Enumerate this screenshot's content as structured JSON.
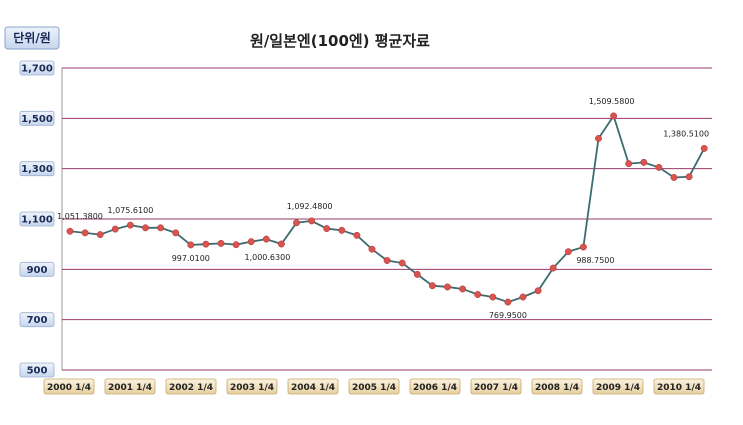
{
  "chart_data": {
    "type": "line",
    "title": "원/일본엔(100엔) 평균자료",
    "unit_label": "단위/원",
    "ylim": [
      500,
      1700
    ],
    "yticks": [
      500,
      700,
      900,
      1100,
      1300,
      1500,
      1700
    ],
    "ytick_labels": [
      "500",
      "700",
      "900",
      "1,100",
      "1,300",
      "1,500",
      "1,700"
    ],
    "x_tick_labels": [
      "2000 1/4",
      "2001 1/4",
      "2002 1/4",
      "2003 1/4",
      "2004 1/4",
      "2005 1/4",
      "2006 1/4",
      "2007 1/4",
      "2008 1/4",
      "2009 1/4",
      "2010 1/4"
    ],
    "grid": true,
    "line_color": "#3d6b70",
    "marker_color": "#d9534f",
    "grid_color": "#9a3a6a",
    "series": [
      {
        "values": [
          1051.38,
          1045,
          1038,
          1060,
          1075.61,
          1065,
          1065,
          1045,
          997.01,
          1000,
          1003,
          998,
          1010,
          1020,
          1000.63,
          1085,
          1092.48,
          1062,
          1055,
          1035,
          980,
          935,
          925,
          880,
          835,
          830,
          822,
          800,
          790,
          769.95,
          790,
          815,
          905,
          970,
          988.75,
          1420,
          1509.58,
          1320,
          1325,
          1305,
          1265,
          1268,
          1380.51
        ]
      }
    ],
    "annotations": [
      {
        "index": 0,
        "text": "1,051.3800"
      },
      {
        "index": 4,
        "text": "1,075.6100"
      },
      {
        "index": 8,
        "text": "997.0100"
      },
      {
        "index": 14,
        "text": "1,000.6300"
      },
      {
        "index": 16,
        "text": "1,092.4800"
      },
      {
        "index": 29,
        "text": "769.9500"
      },
      {
        "index": 34,
        "text": "988.7500"
      },
      {
        "index": 36,
        "text": "1,509.5800"
      },
      {
        "index": 42,
        "text": "1,380.5100"
      }
    ]
  }
}
